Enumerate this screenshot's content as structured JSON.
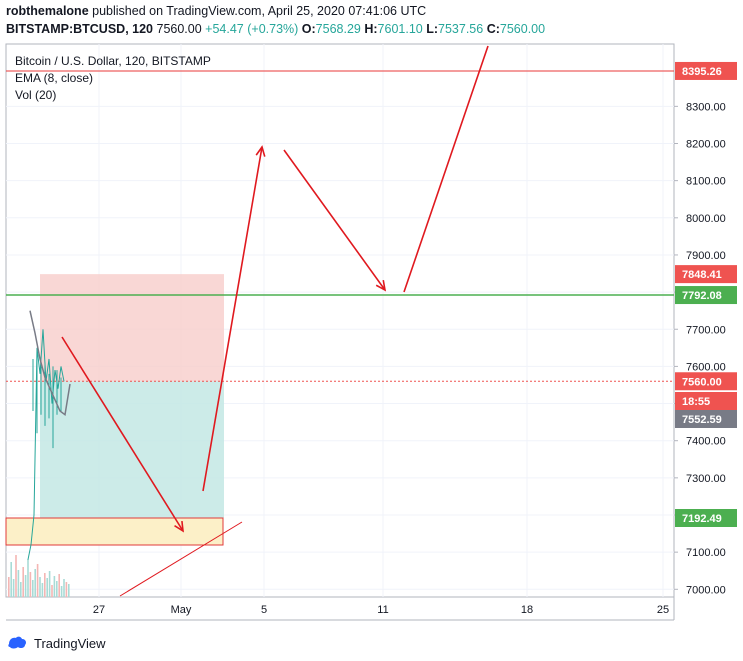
{
  "header": {
    "publisher": "robthemalone",
    "published_text": "published on TradingView.com, April 25, 2020 07:41:06 UTC",
    "symbol": "BITSTAMP:BTCUSD, 120",
    "last": "7560.00",
    "change": "+54.47 (+0.73%)",
    "open_label": "O:",
    "open": "7568.29",
    "high_label": "H:",
    "high": "7601.10",
    "low_label": "L:",
    "low": "7537.56",
    "close_label": "C:",
    "close": "7560.00"
  },
  "legend": {
    "title": "Bitcoin / U.S. Dollar, 120, BITSTAMP",
    "ema": "EMA (8, close)",
    "vol": "Vol (20)"
  },
  "brand": {
    "name": "TradingView"
  },
  "colors": {
    "up": "#26a69a",
    "down": "#ef5350",
    "arrow": "#e0191f",
    "target_line": "#ea3a3a",
    "support_line": "#4caf50",
    "stop_zone": "#f8cdca",
    "profit_zone": "#c3e7e4",
    "box_fill": "#fcf0c8",
    "price_tag": "#ef5350",
    "support_tag": "#4caf50",
    "gray_tag": "#787b86",
    "ema": "#787b86"
  },
  "chart_data": {
    "type": "line",
    "title": "Bitcoin / U.S. Dollar, 120, BITSTAMP",
    "x_ticks": [
      "27",
      "May",
      "5",
      "11",
      "18",
      "25"
    ],
    "y_ticks": [
      7000,
      7100,
      7200,
      7300,
      7400,
      7500,
      7600,
      7700,
      7800,
      7900,
      8000,
      8100,
      8200,
      8300
    ],
    "ylim": [
      6980,
      8420
    ],
    "price_labels": [
      {
        "text": "8395.26",
        "price": 8395.26,
        "role": "target"
      },
      {
        "text": "7848.41",
        "price": 7848.41,
        "role": "stop"
      },
      {
        "text": "7792.08",
        "price": 7792.08,
        "role": "support"
      },
      {
        "text": "7560.00",
        "price": 7560.0,
        "role": "last"
      },
      {
        "text": "18:55",
        "price": 7514,
        "role": "countdown"
      },
      {
        "text": "7552.59",
        "price": 7552.59,
        "role": "ema"
      },
      {
        "text": "7192.49",
        "price": 7192.49,
        "role": "box"
      }
    ],
    "horizontal_lines": [
      {
        "price": 8395.26,
        "color": "#ea3a3a"
      },
      {
        "price": 7792.08,
        "color": "#4caf50"
      }
    ],
    "position_tool": {
      "entry": 7560.0,
      "stop": 7848.41,
      "target": 7192.49
    },
    "price_series_approx": [
      7080,
      7120,
      7200,
      7650,
      7580,
      7700,
      7560,
      7620,
      7500,
      7590,
      7540,
      7600,
      7560
    ],
    "ema_series_approx": [
      7750,
      7690,
      7620,
      7570,
      7540,
      7510,
      7480,
      7470,
      7552.59
    ],
    "projected_path": [
      {
        "x_day": 24.8,
        "price": 7690
      },
      {
        "x_day": 30.0,
        "price": 7130
      },
      {
        "x_day": 31.3,
        "price": 7250
      },
      {
        "x_day": 35.0,
        "price": 8190
      },
      {
        "x_day": 35.3,
        "price": 8180
      },
      {
        "x_day": 41.0,
        "price": 7790
      },
      {
        "x_day": 42.5,
        "price": 7790
      },
      {
        "x_day": 46.2,
        "price": 8420
      }
    ]
  }
}
